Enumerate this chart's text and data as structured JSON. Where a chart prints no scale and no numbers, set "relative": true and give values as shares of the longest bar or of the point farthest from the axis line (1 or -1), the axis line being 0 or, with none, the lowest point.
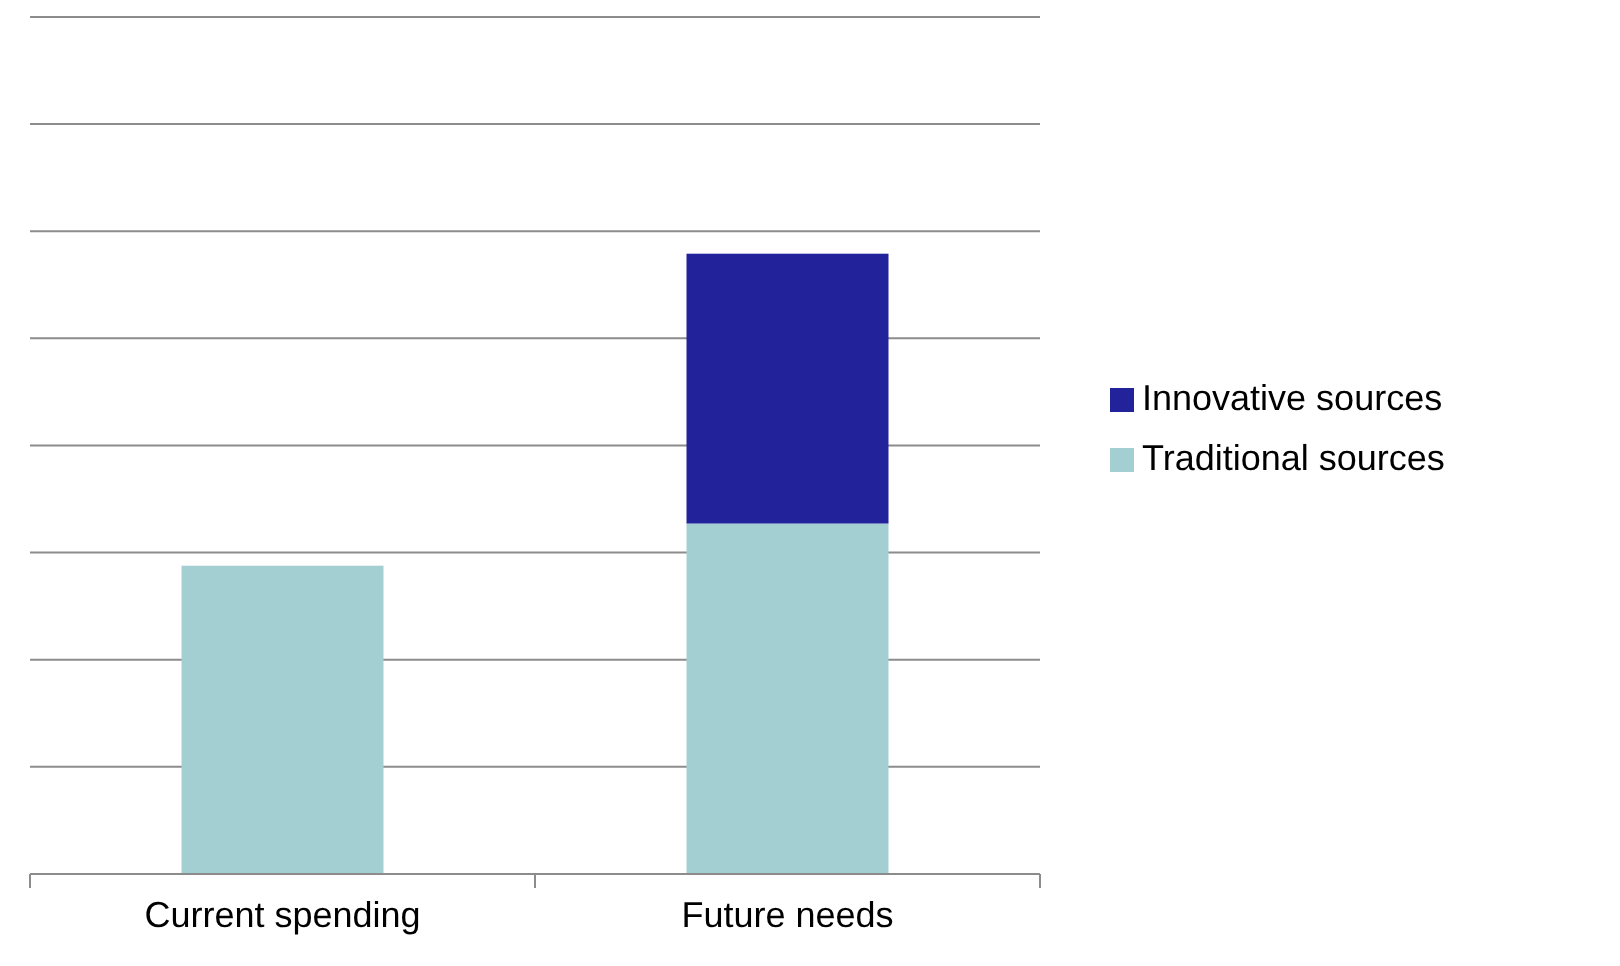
{
  "chart_data": {
    "type": "bar",
    "relative": true,
    "stacked": true,
    "grid": true,
    "legend": "right",
    "categories": [
      "Current spending",
      "Future needs"
    ],
    "series": [
      {
        "name": "Traditional sources",
        "color": "#a3cfd3",
        "values": [
          0.497,
          0.565
        ]
      },
      {
        "name": "Innovative sources",
        "color": "#22229a",
        "values": [
          null,
          0.435
        ]
      }
    ]
  }
}
